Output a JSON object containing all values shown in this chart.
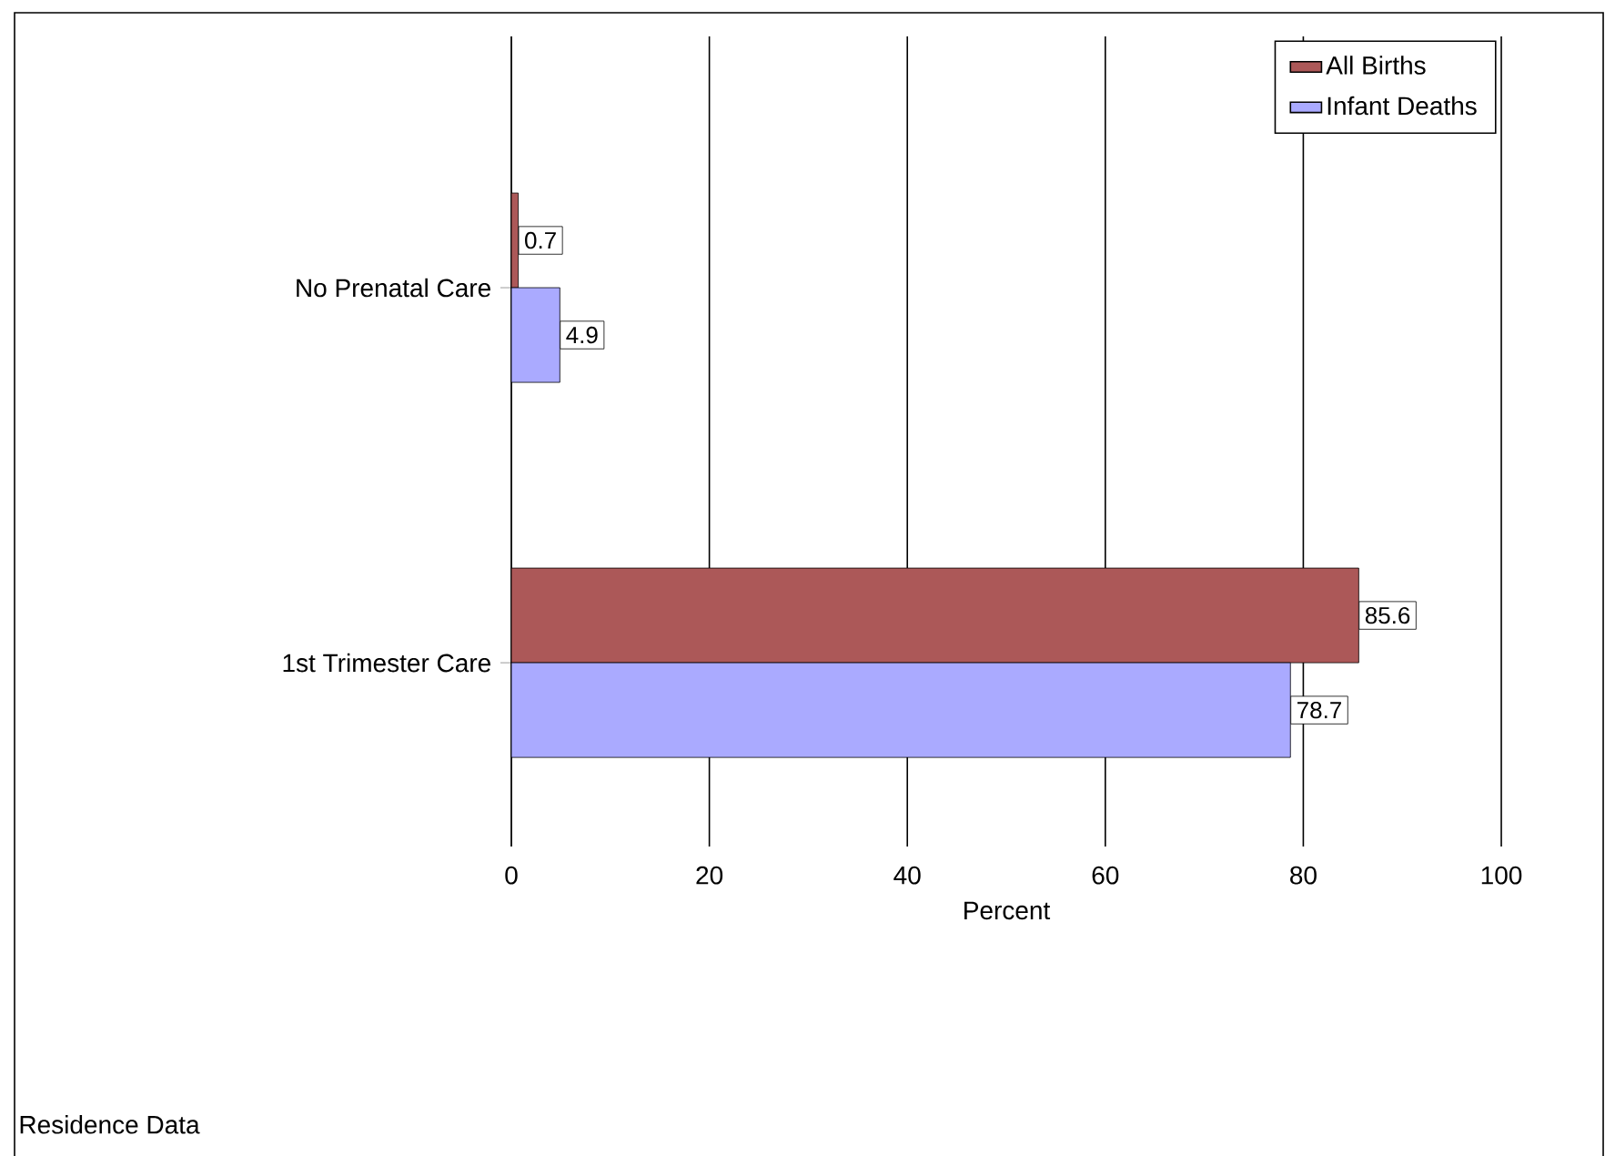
{
  "chart_data": {
    "type": "bar",
    "orientation": "horizontal",
    "categories": [
      "No Prenatal Care",
      "1st Trimester Care"
    ],
    "series": [
      {
        "name": "All Births",
        "color": "#ac5858",
        "values": [
          0.7,
          85.6
        ]
      },
      {
        "name": "Infant Deaths",
        "color": "#aaaaff",
        "values": [
          4.9,
          78.7
        ]
      }
    ],
    "xlabel": "Percent",
    "xlim": [
      0,
      100
    ],
    "xticks": [
      0,
      20,
      40,
      60,
      80,
      100
    ],
    "grid": "x",
    "legend": "top right",
    "data_labels": true,
    "annotations": [
      "Residence Data"
    ]
  }
}
